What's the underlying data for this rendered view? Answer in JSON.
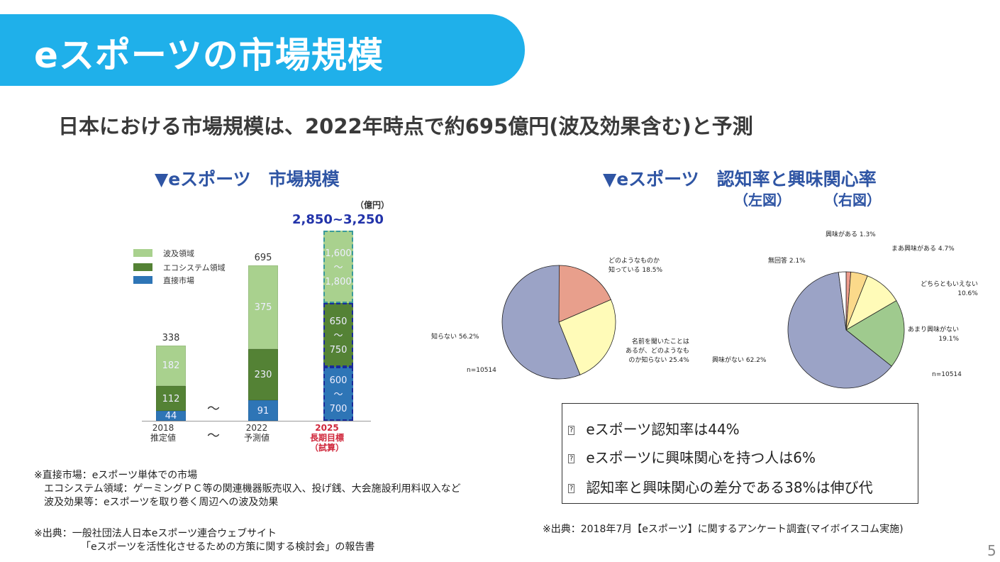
{
  "title": "eスポーツの市場規模",
  "subtitle": "日本における市場規模は、2022年時点で約695億円(波及効果含む)と予測",
  "left_section": {
    "title": "▼eスポーツ　市場規模"
  },
  "right_section": {
    "title": "▼eスポーツ　認知率と興味関心率",
    "left_label": "（左図）",
    "right_label": "（右図）"
  },
  "chart_data": [
    {
      "type": "bar",
      "title": "eスポーツ 市場規模",
      "unit": "（億円）",
      "stacked": true,
      "legend": [
        "波及領域",
        "エコシステム領域",
        "直接市場"
      ],
      "colors": {
        "ripple": "#a9d18e",
        "eco": "#548235",
        "direct": "#2e75b6"
      },
      "categories": [
        {
          "year": "2018",
          "note": "推定値"
        },
        {
          "year": "2022",
          "note": "予測値"
        },
        {
          "year": "2025",
          "note": "長期目標",
          "note2": "（試算）"
        }
      ],
      "series": [
        {
          "name": "直接市場",
          "values": [
            44,
            91,
            "600~700"
          ]
        },
        {
          "name": "エコシステム領域",
          "values": [
            112,
            230,
            "650~750"
          ]
        },
        {
          "name": "波及領域",
          "values": [
            182,
            375,
            "1,600~1,800"
          ]
        }
      ],
      "totals": [
        "338",
        "695",
        "2,850~3,250"
      ],
      "labels_2025": {
        "direct": [
          "600",
          "～",
          "700"
        ],
        "eco": [
          "650",
          "～",
          "750"
        ],
        "ripple": [
          "1,600",
          "～",
          "1,800"
        ]
      },
      "tilde": "～"
    },
    {
      "type": "pie",
      "title": "認知率（左図）",
      "n": "n=10514",
      "slices": [
        {
          "label": "どのようなものか知っている",
          "value": 18.5,
          "color": "#e89f8c"
        },
        {
          "label": "名前を聞いたことはあるが、どのようなものか知らない",
          "value": 25.4,
          "color": "#fffbb8"
        },
        {
          "label": "知らない",
          "value": 56.2,
          "color": "#9ba3c6"
        }
      ],
      "label_text": [
        "どのようなものか",
        "知っている 18.5%",
        "名前を聞いたことは",
        "あるが、どのようなも",
        "のか知らない 25.4%",
        "知らない 56.2%"
      ]
    },
    {
      "type": "pie",
      "title": "興味関心率（右図）",
      "n": "n=10514",
      "slices": [
        {
          "label": "興味がある",
          "value": 1.3,
          "color": "#ee9c8c"
        },
        {
          "label": "まあ興味がある",
          "value": 4.7,
          "color": "#fbd98a"
        },
        {
          "label": "どちらともいえない",
          "value": 10.6,
          "color": "#fffbb8"
        },
        {
          "label": "あまり興味がない",
          "value": 19.1,
          "color": "#9fca8e"
        },
        {
          "label": "興味がない",
          "value": 62.2,
          "color": "#9ba3c6"
        },
        {
          "label": "無回答",
          "value": 2.1,
          "color": "#ffffff"
        }
      ],
      "label_text": [
        "興味がある 1.3%",
        "まあ興味がある 4.7%",
        "どちらともいえない",
        "10.6%",
        "あまり興味がない",
        "19.1%",
        "興味がない 62.2%",
        "無回答 2.1%"
      ]
    }
  ],
  "summary": [
    "eスポーツ認知率は44%",
    "eスポーツに興味関心を持つ人は6%",
    "認知率と興味関心の差分である38%は伸び代"
  ],
  "bullet_glyph": "?",
  "notes_left": [
    "※直接市場：eスポーツ単体での市場",
    "　エコシステム領域：ゲーミングＰＣ等の関連機器販売収入、投げ銭、大会施設利用料収入など",
    "　波及効果等：eスポーツを取り巻く周辺への波及効果"
  ],
  "source_left": [
    "※出典：一般社団法人日本eスポーツ連合ウェブサイト",
    "「eスポーツを活性化させるための方策に関する検討会」の報告書"
  ],
  "source_right": "※出典：2018年7月【eスポーツ】に関するアンケート調査(マイボイスコム実施)",
  "page_number": "5"
}
